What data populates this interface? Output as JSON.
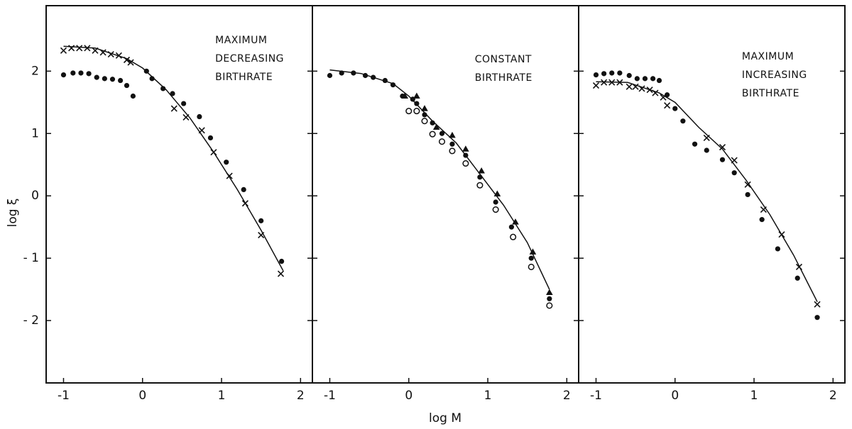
{
  "chart_data": [
    {
      "type": "scatter",
      "ylabel": "log ξ",
      "annotation": [
        "MAXIMUM",
        "DECREASING",
        "BIRTHRATE"
      ],
      "xlim": [
        -1.22,
        2.15
      ],
      "ylim": [
        -3,
        3.05
      ],
      "xticks": [
        -1,
        0,
        1,
        2
      ],
      "yticks": [
        {
          "value": -2,
          "label": "- 2"
        },
        {
          "value": -1,
          "label": "- 1"
        },
        0,
        1,
        2
      ],
      "line": {
        "x": [
          -1,
          -0.6,
          -0.2,
          0,
          0.3,
          0.6,
          0.9,
          1.2,
          1.5,
          1.78
        ],
        "values": [
          2.4,
          2.37,
          2.2,
          2.05,
          1.7,
          1.25,
          0.7,
          0.1,
          -0.55,
          -1.2
        ]
      },
      "series": [
        {
          "marker": "cross",
          "color": "#111111",
          "x": [
            -1,
            -0.9,
            -0.8,
            -0.7,
            -0.6,
            -0.5,
            -0.4,
            -0.3,
            -0.2,
            -0.15,
            0.4,
            0.55,
            0.75,
            0.9,
            1.1,
            1.3,
            1.5,
            1.75
          ],
          "values": [
            2.33,
            2.37,
            2.37,
            2.37,
            2.33,
            2.3,
            2.27,
            2.25,
            2.18,
            2.14,
            1.4,
            1.26,
            1.05,
            0.7,
            0.32,
            -0.12,
            -0.63,
            -1.25
          ]
        },
        {
          "marker": "dot",
          "color": "#111111",
          "x": [
            -1,
            -0.88,
            -0.78,
            -0.68,
            -0.58,
            -0.48,
            -0.38,
            -0.28,
            -0.2,
            -0.12,
            0.05,
            0.12,
            0.26,
            0.38,
            0.52,
            0.72,
            0.86,
            1.06,
            1.28,
            1.5,
            1.76
          ],
          "values": [
            1.94,
            1.97,
            1.97,
            1.96,
            1.9,
            1.88,
            1.87,
            1.85,
            1.77,
            1.6,
            2.0,
            1.88,
            1.72,
            1.64,
            1.48,
            1.27,
            0.93,
            0.54,
            0.1,
            -0.4,
            -1.05
          ]
        }
      ]
    },
    {
      "type": "scatter",
      "xlabel": "log M",
      "annotation": [
        "CONSTANT",
        "BIRTHRATE"
      ],
      "xlim": [
        -1.22,
        2.15
      ],
      "ylim": [
        -3,
        3.05
      ],
      "xticks": [
        -1,
        0,
        1,
        2
      ],
      "yticks": [
        -2,
        -1,
        0,
        1,
        2
      ],
      "line": {
        "x": [
          -1,
          -0.6,
          -0.2,
          0,
          0.3,
          0.6,
          0.9,
          1.2,
          1.5,
          1.78
        ],
        "values": [
          2.02,
          1.96,
          1.8,
          1.6,
          1.2,
          0.85,
          0.35,
          -0.15,
          -0.75,
          -1.5
        ]
      },
      "series": [
        {
          "marker": "dot",
          "color": "#111111",
          "x": [
            -1,
            -0.85,
            -0.7,
            -0.55,
            -0.45,
            -0.3,
            -0.2,
            -0.08,
            0.05,
            0.1,
            0.2,
            0.3,
            0.42,
            0.55,
            0.72,
            0.9,
            1.1,
            1.3,
            1.55,
            1.78
          ],
          "values": [
            1.93,
            1.97,
            1.97,
            1.93,
            1.9,
            1.85,
            1.78,
            1.6,
            1.55,
            1.48,
            1.3,
            1.17,
            1.0,
            0.83,
            0.65,
            0.3,
            -0.1,
            -0.5,
            -1.0,
            -1.65
          ]
        },
        {
          "marker": "triangle",
          "color": "#111111",
          "x": [
            -0.05,
            0.1,
            0.2,
            0.35,
            0.55,
            0.72,
            0.92,
            1.12,
            1.35,
            1.57,
            1.78
          ],
          "values": [
            1.6,
            1.6,
            1.4,
            1.1,
            0.97,
            0.75,
            0.4,
            0.03,
            -0.42,
            -0.9,
            -1.55
          ]
        },
        {
          "marker": "circle",
          "color": "#111111",
          "x": [
            0,
            0.1,
            0.2,
            0.3,
            0.42,
            0.55,
            0.72,
            0.9,
            1.1,
            1.32,
            1.55,
            1.78
          ],
          "values": [
            1.36,
            1.36,
            1.2,
            0.99,
            0.87,
            0.72,
            0.52,
            0.17,
            -0.22,
            -0.66,
            -1.14,
            -1.76
          ]
        }
      ]
    },
    {
      "type": "scatter",
      "annotation": [
        "MAXIMUM",
        "INCREASING",
        "BIRTHRATE"
      ],
      "xlim": [
        -1.22,
        2.15
      ],
      "ylim": [
        -3,
        3.05
      ],
      "xticks": [
        -1,
        0,
        1,
        2
      ],
      "yticks": [
        -2,
        -1,
        0,
        1,
        2
      ],
      "line": {
        "x": [
          -1,
          -0.6,
          -0.2,
          0,
          0.3,
          0.6,
          0.9,
          1.2,
          1.5,
          1.8
        ],
        "values": [
          1.83,
          1.82,
          1.65,
          1.5,
          1.1,
          0.75,
          0.25,
          -0.3,
          -0.95,
          -1.7
        ]
      },
      "series": [
        {
          "marker": "dot",
          "color": "#111111",
          "x": [
            -1,
            -0.9,
            -0.8,
            -0.7,
            -0.58,
            -0.48,
            -0.38,
            -0.28,
            -0.2,
            -0.1,
            0,
            0.1,
            0.25,
            0.4,
            0.6,
            0.75,
            0.92,
            1.1,
            1.3,
            1.55,
            1.8
          ],
          "values": [
            1.94,
            1.96,
            1.97,
            1.97,
            1.93,
            1.88,
            1.88,
            1.88,
            1.85,
            1.62,
            1.4,
            1.2,
            0.83,
            0.73,
            0.58,
            0.37,
            0.02,
            -0.38,
            -0.85,
            -1.32,
            -1.95
          ]
        },
        {
          "marker": "cross",
          "color": "#111111",
          "x": [
            -1,
            -0.9,
            -0.8,
            -0.7,
            -0.58,
            -0.5,
            -0.42,
            -0.32,
            -0.25,
            -0.15,
            -0.1,
            0.4,
            0.6,
            0.75,
            0.92,
            1.12,
            1.35,
            1.57,
            1.8
          ],
          "values": [
            1.77,
            1.82,
            1.82,
            1.82,
            1.75,
            1.75,
            1.72,
            1.7,
            1.65,
            1.58,
            1.45,
            0.93,
            0.78,
            0.57,
            0.18,
            -0.22,
            -0.62,
            -1.14,
            -1.74
          ]
        }
      ]
    }
  ]
}
